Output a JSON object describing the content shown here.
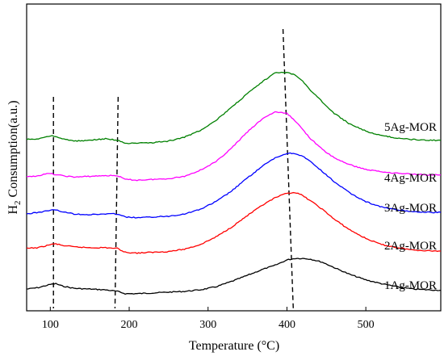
{
  "chart_data": {
    "type": "line",
    "xlabel": "Temperature (°C)",
    "ylabel": "H2 Consumption(a.u.)",
    "ylabel_main": "H",
    "ylabel_sub": "2",
    "ylabel_rest": " Consumption(a.u.)",
    "xlim": [
      70,
      595
    ],
    "xticks": [
      100,
      200,
      300,
      400,
      500
    ],
    "yticks": [],
    "grid": false,
    "legend": "none",
    "dashed_guides": [
      {
        "x": [
          104,
          104
        ]
      },
      {
        "x": [
          186,
          182
        ]
      },
      {
        "x": [
          395,
          408
        ]
      }
    ],
    "series": [
      {
        "name": "1Ag-MOR",
        "color": "#000000",
        "offset": 0,
        "x": [
          70,
          85,
          100,
          107,
          115,
          130,
          150,
          170,
          185,
          195,
          210,
          230,
          250,
          270,
          290,
          310,
          330,
          350,
          370,
          385,
          400,
          410,
          420,
          430,
          445,
          460,
          480,
          500,
          520,
          540,
          560,
          580,
          595
        ],
        "values": [
          2,
          4,
          8,
          9,
          6,
          3,
          2,
          1,
          -1,
          -4,
          -4,
          -3,
          -2,
          -1,
          1,
          5,
          12,
          20,
          28,
          33,
          40,
          42,
          42,
          41,
          37,
          30,
          21,
          14,
          9,
          5,
          2,
          1,
          0.5
        ]
      },
      {
        "name": "2Ag-MOR",
        "color": "#ff0000",
        "offset": 50,
        "x": [
          70,
          85,
          100,
          107,
          115,
          130,
          150,
          170,
          185,
          195,
          210,
          230,
          250,
          270,
          290,
          310,
          330,
          350,
          370,
          385,
          400,
          410,
          420,
          430,
          445,
          460,
          480,
          500,
          520,
          540,
          560,
          580,
          595
        ],
        "values": [
          5,
          6,
          10,
          11,
          9,
          7,
          6,
          6,
          5,
          0,
          -1,
          0,
          1,
          4,
          10,
          20,
          33,
          48,
          62,
          71,
          77,
          78,
          74,
          67,
          56,
          43,
          29,
          18,
          10,
          6,
          3,
          2,
          1.5
        ]
      },
      {
        "name": "3Ag-MOR",
        "color": "#0000ff",
        "offset": 100,
        "x": [
          70,
          85,
          100,
          107,
          115,
          130,
          150,
          170,
          185,
          195,
          210,
          230,
          250,
          270,
          290,
          310,
          330,
          350,
          370,
          385,
          400,
          410,
          420,
          430,
          445,
          460,
          480,
          500,
          520,
          540,
          560,
          580,
          595
        ],
        "values": [
          0,
          2,
          5,
          5,
          3,
          0,
          -1,
          0,
          0,
          -4,
          -5,
          -4,
          -3,
          0,
          6,
          16,
          30,
          47,
          63,
          73,
          79,
          79,
          75,
          68,
          55,
          42,
          27,
          16,
          9,
          5,
          3,
          2,
          2
        ]
      },
      {
        "name": "4Ag-MOR",
        "color": "#ff00ff",
        "offset": 150,
        "x": [
          70,
          85,
          100,
          107,
          115,
          130,
          150,
          170,
          185,
          195,
          210,
          230,
          250,
          270,
          290,
          310,
          330,
          350,
          370,
          385,
          400,
          410,
          420,
          430,
          445,
          460,
          480,
          500,
          520,
          540,
          560,
          580,
          595
        ],
        "values": [
          -2,
          0,
          3,
          1,
          0,
          -2,
          -1,
          0,
          0,
          -5,
          -6,
          -5,
          -4,
          -1,
          7,
          18,
          36,
          57,
          75,
          83,
          81,
          72,
          60,
          48,
          34,
          23,
          14,
          8,
          5,
          3,
          2,
          1,
          1
        ]
      },
      {
        "name": "5Ag-MOR",
        "color": "#008000",
        "offset": 195,
        "x": [
          70,
          85,
          100,
          107,
          115,
          130,
          150,
          170,
          185,
          195,
          210,
          230,
          250,
          270,
          290,
          310,
          330,
          350,
          370,
          385,
          395,
          410,
          420,
          430,
          445,
          460,
          480,
          500,
          520,
          540,
          560,
          580,
          595
        ],
        "values": [
          2,
          3,
          7,
          6,
          3,
          0,
          1,
          3,
          1,
          -3,
          -3,
          -2,
          0,
          5,
          14,
          27,
          44,
          62,
          78,
          89,
          90,
          87,
          78,
          66,
          51,
          36,
          22,
          13,
          7,
          4,
          2,
          1,
          1
        ]
      }
    ]
  }
}
